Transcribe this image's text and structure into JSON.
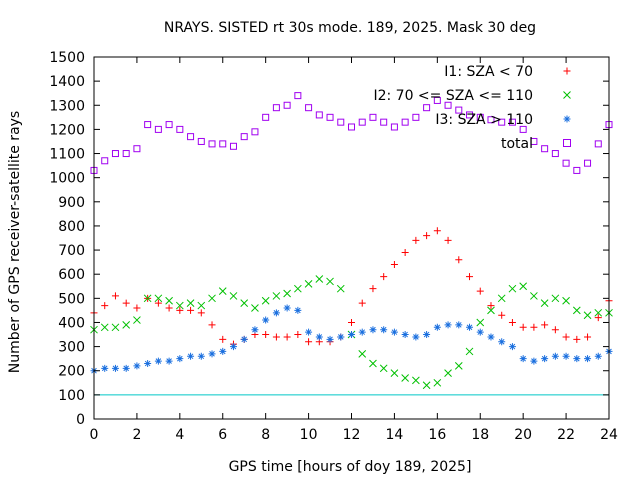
{
  "chart_data": {
    "type": "scatter",
    "title": "NRAYS. SISTED rt 30s mode. 189, 2025. Mask 30 deg",
    "xlabel": "GPS time [hours of doy 189, 2025]",
    "ylabel": "Number of GPS receiver-satellite rays",
    "xlim": [
      0,
      24
    ],
    "ylim": [
      0,
      1500
    ],
    "xticks": [
      0,
      2,
      4,
      6,
      8,
      10,
      12,
      14,
      16,
      18,
      20,
      22,
      24
    ],
    "yticks": [
      0,
      100,
      200,
      300,
      400,
      500,
      600,
      700,
      800,
      900,
      1000,
      1100,
      1200,
      1300,
      1400,
      1500
    ],
    "legend_position": "top-right",
    "threshold": {
      "y": 100,
      "color": "#00c8c8"
    },
    "series": [
      {
        "name": "I1: SZA < 70",
        "marker": "+",
        "color": "#ff0000",
        "x": [
          0,
          0.5,
          1,
          1.5,
          2,
          2.5,
          3,
          3.5,
          4,
          4.5,
          5,
          5.5,
          6,
          6.5,
          7,
          7.5,
          8,
          8.5,
          9,
          9.5,
          10,
          10.5,
          11,
          11.5,
          12,
          12.5,
          13,
          13.5,
          14,
          14.5,
          15,
          15.5,
          16,
          16.5,
          17,
          17.5,
          18,
          18.5,
          19,
          19.5,
          20,
          20.5,
          21,
          21.5,
          22,
          22.5,
          23,
          23.5,
          24
        ],
        "values": [
          440,
          470,
          510,
          480,
          460,
          500,
          480,
          460,
          450,
          450,
          440,
          390,
          330,
          310,
          330,
          350,
          350,
          340,
          340,
          350,
          320,
          320,
          320,
          340,
          400,
          480,
          540,
          590,
          640,
          690,
          740,
          760,
          780,
          740,
          660,
          590,
          530,
          470,
          430,
          400,
          380,
          380,
          390,
          370,
          340,
          330,
          340,
          420,
          490
        ]
      },
      {
        "name": "I2: 70 <= SZA <= 110",
        "marker": "x",
        "color": "#00c000",
        "x": [
          0,
          0.5,
          1,
          1.5,
          2,
          2.5,
          3,
          3.5,
          4,
          4.5,
          5,
          5.5,
          6,
          6.5,
          7,
          7.5,
          8,
          8.5,
          9,
          9.5,
          10,
          10.5,
          11,
          11.5,
          12,
          12.5,
          13,
          13.5,
          14,
          14.5,
          15,
          15.5,
          16,
          16.5,
          17,
          17.5,
          18,
          18.5,
          19,
          19.5,
          20,
          20.5,
          21,
          21.5,
          22,
          22.5,
          23,
          23.5,
          24
        ],
        "values": [
          370,
          380,
          380,
          390,
          410,
          500,
          500,
          490,
          470,
          480,
          470,
          500,
          530,
          510,
          480,
          460,
          490,
          510,
          520,
          540,
          560,
          580,
          570,
          540,
          350,
          270,
          230,
          210,
          190,
          170,
          160,
          140,
          150,
          190,
          220,
          280,
          400,
          450,
          500,
          540,
          550,
          510,
          480,
          500,
          490,
          450,
          430,
          440,
          440
        ]
      },
      {
        "name": "I3: SZA > 110",
        "marker": "*",
        "color": "#1a6fdf",
        "x": [
          0,
          0.5,
          1,
          1.5,
          2,
          2.5,
          3,
          3.5,
          4,
          4.5,
          5,
          5.5,
          6,
          6.5,
          7,
          7.5,
          8,
          8.5,
          9,
          9.5,
          10,
          10.5,
          11,
          11.5,
          12,
          12.5,
          13,
          13.5,
          14,
          14.5,
          15,
          15.5,
          16,
          16.5,
          17,
          17.5,
          18,
          18.5,
          19,
          19.5,
          20,
          20.5,
          21,
          21.5,
          22,
          22.5,
          23,
          23.5,
          24
        ],
        "values": [
          200,
          210,
          210,
          210,
          220,
          230,
          240,
          240,
          250,
          260,
          260,
          270,
          280,
          300,
          330,
          370,
          410,
          440,
          460,
          450,
          360,
          340,
          330,
          340,
          350,
          360,
          370,
          370,
          360,
          350,
          340,
          350,
          380,
          390,
          390,
          380,
          360,
          340,
          320,
          300,
          250,
          240,
          250,
          260,
          260,
          250,
          250,
          260,
          280
        ]
      },
      {
        "name": "total",
        "marker": "square",
        "color": "#a000f0",
        "x": [
          0,
          0.5,
          1,
          1.5,
          2,
          2.5,
          3,
          3.5,
          4,
          4.5,
          5,
          5.5,
          6,
          6.5,
          7,
          7.5,
          8,
          8.5,
          9,
          9.5,
          10,
          10.5,
          11,
          11.5,
          12,
          12.5,
          13,
          13.5,
          14,
          14.5,
          15,
          15.5,
          16,
          16.5,
          17,
          17.5,
          18,
          18.5,
          19,
          19.5,
          20,
          20.5,
          21,
          21.5,
          22,
          22.5,
          23,
          23.5,
          24
        ],
        "values": [
          1030,
          1070,
          1100,
          1100,
          1120,
          1220,
          1200,
          1220,
          1200,
          1170,
          1150,
          1140,
          1140,
          1130,
          1170,
          1190,
          1250,
          1290,
          1300,
          1340,
          1290,
          1260,
          1250,
          1230,
          1210,
          1230,
          1250,
          1230,
          1210,
          1230,
          1250,
          1290,
          1320,
          1300,
          1280,
          1260,
          1250,
          1240,
          1230,
          1230,
          1200,
          1150,
          1120,
          1100,
          1060,
          1030,
          1060,
          1140,
          1220
        ]
      }
    ]
  }
}
